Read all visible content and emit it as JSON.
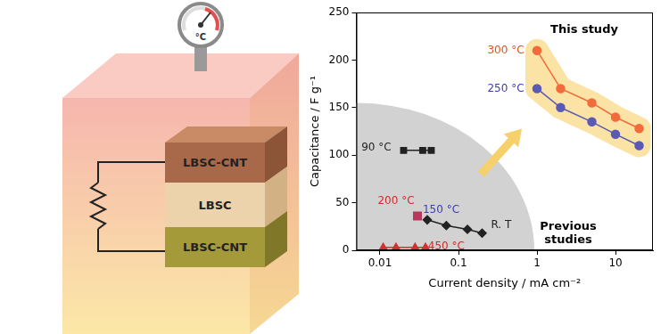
{
  "diagram": {
    "gauge_label": "°C",
    "layers": [
      "LBSC-CNT",
      "LBSC",
      "LBSC-CNT"
    ]
  },
  "chart_data": {
    "type": "line",
    "x_label": "Current density / mA cm⁻²",
    "y_label": "Capacitance / F g⁻¹",
    "log": "x",
    "grid": false,
    "xlim": [
      0.005,
      30
    ],
    "xticks": [
      0.01,
      0.1,
      1,
      10
    ],
    "ylim": [
      0,
      250
    ],
    "yticks": [
      0,
      50,
      100,
      150,
      200,
      250
    ],
    "series": [
      {
        "color": "#f26b3a",
        "marker": "circle",
        "x": [
          1,
          2,
          5,
          10,
          20
        ],
        "values": [
          210,
          170,
          155,
          140,
          128
        ]
      },
      {
        "color": "#5a5ab4",
        "marker": "circle",
        "x": [
          1,
          2,
          5,
          10,
          20
        ],
        "values": [
          170,
          150,
          135,
          122,
          110
        ]
      },
      {
        "color": "#222222",
        "marker": "square",
        "x": [
          0.02,
          0.035,
          0.045
        ],
        "values": [
          105,
          105,
          105
        ]
      },
      {
        "color": "#b8385e",
        "marker": "square",
        "x": [
          0.03
        ],
        "values": [
          36
        ]
      },
      {
        "color": "#222222",
        "marker": "diamond",
        "x": [
          0.04,
          0.07,
          0.13,
          0.2
        ],
        "values": [
          32,
          26,
          22,
          18
        ]
      },
      {
        "color": "#d43030",
        "marker": "triangle",
        "x": [
          0.011,
          0.016,
          0.028,
          0.038
        ],
        "values": [
          3,
          3,
          3,
          3
        ]
      }
    ],
    "annotations": [
      {
        "text": "This study",
        "x": 4,
        "y": 232
      },
      {
        "text": "Previous\nstudies",
        "x": 2.5,
        "y": 18
      },
      {
        "text": "300 °C",
        "x": 0.4,
        "y": 210,
        "color": "#e8501e"
      },
      {
        "text": "250 °C",
        "x": 0.4,
        "y": 170,
        "color": "#3c3cb0"
      },
      {
        "text": "90 °C",
        "x": 0.009,
        "y": 108,
        "color": "#222222"
      },
      {
        "text": "200 °C",
        "x": 0.016,
        "y": 52,
        "color": "#d02a2a"
      },
      {
        "text": "150 °C",
        "x": 0.06,
        "y": 42,
        "color": "#3c3cb0"
      },
      {
        "text": "R. T",
        "x": 0.35,
        "y": 26,
        "color": "#222222"
      },
      {
        "text": "450 °C",
        "x": 0.07,
        "y": 4,
        "color": "#d02a2a"
      }
    ]
  }
}
